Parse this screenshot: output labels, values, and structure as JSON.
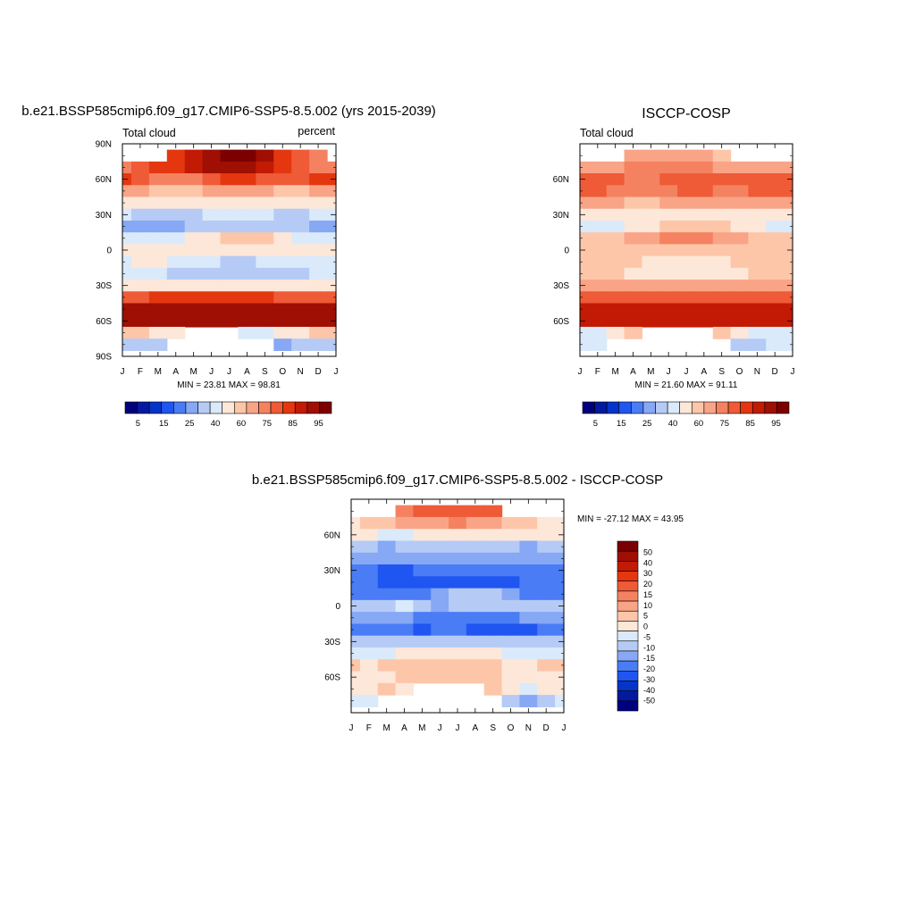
{
  "colors": {
    "abs_scale": [
      "#00007f",
      "#0219a0",
      "#0434c8",
      "#1f55f0",
      "#4a7cf6",
      "#86a8f5",
      "#b5cbf6",
      "#daeafa",
      "#fde7d8",
      "#fdc6a9",
      "#f9a487",
      "#f48261",
      "#ef5a37",
      "#e43710",
      "#c21a05",
      "#9f0f03",
      "#7c0000"
    ],
    "diff_scale": [
      "#00007f",
      "#0219a0",
      "#0434c8",
      "#1f55f0",
      "#4a7cf6",
      "#86a8f5",
      "#b5cbf6",
      "#daeafa",
      "#fde7d8",
      "#fdc6a9",
      "#f9a487",
      "#f48261",
      "#ef5a37",
      "#e43710",
      "#c21a05",
      "#9f0f03",
      "#7c0000"
    ]
  },
  "chart_data": [
    {
      "type": "heatmap",
      "title": "b.e21.BSSP585cmip6.f09_g17.CMIP6-SSP5-8.5.002 (yrs 2015-2039)",
      "left_label": "Total cloud",
      "right_label": "percent",
      "x": [
        "J",
        "F",
        "M",
        "A",
        "M",
        "J",
        "J",
        "A",
        "S",
        "O",
        "N",
        "D",
        "J"
      ],
      "y_ticks": [
        "90N",
        "60N",
        "30N",
        "0",
        "30S",
        "60S",
        "90S"
      ],
      "stats": "MIN =  23.81 MAX =  98.81",
      "colorbar_labels": [
        "5",
        "15",
        "25",
        "40",
        "60",
        "75",
        "85",
        "95"
      ],
      "colorbar_levels": [
        5,
        10,
        15,
        20,
        25,
        30,
        40,
        50,
        60,
        65,
        70,
        75,
        80,
        85,
        90,
        95
      ],
      "bands": [
        {
          "lat": 80,
          "values": [
            65,
            75,
            80,
            82,
            88,
            94,
            97,
            96,
            90,
            84,
            76,
            70,
            65
          ]
        },
        {
          "lat": 70,
          "values": [
            72,
            78,
            82,
            84,
            86,
            90,
            92,
            90,
            86,
            82,
            78,
            74,
            72
          ]
        },
        {
          "lat": 60,
          "values": [
            82,
            78,
            72,
            72,
            74,
            78,
            80,
            80,
            78,
            76,
            78,
            82,
            82
          ]
        },
        {
          "lat": 50,
          "values": [
            68,
            66,
            62,
            62,
            64,
            66,
            68,
            68,
            66,
            64,
            64,
            66,
            68
          ]
        },
        {
          "lat": 40,
          "values": [
            55,
            54,
            52,
            50,
            50,
            52,
            55,
            55,
            54,
            54,
            54,
            55,
            55
          ]
        },
        {
          "lat": 30,
          "values": [
            40,
            38,
            36,
            34,
            36,
            40,
            42,
            42,
            40,
            38,
            38,
            40,
            40
          ]
        },
        {
          "lat": 20,
          "values": [
            28,
            26,
            25,
            26,
            30,
            35,
            38,
            38,
            36,
            32,
            30,
            28,
            28
          ]
        },
        {
          "lat": 10,
          "values": [
            42,
            42,
            44,
            48,
            52,
            58,
            62,
            62,
            60,
            55,
            48,
            44,
            42
          ]
        },
        {
          "lat": 0,
          "values": [
            55,
            56,
            58,
            58,
            56,
            54,
            54,
            54,
            56,
            58,
            58,
            56,
            55
          ]
        },
        {
          "lat": -10,
          "values": [
            48,
            50,
            50,
            46,
            42,
            40,
            38,
            38,
            40,
            42,
            46,
            48,
            48
          ]
        },
        {
          "lat": -20,
          "values": [
            40,
            42,
            42,
            38,
            34,
            32,
            30,
            30,
            32,
            34,
            38,
            40,
            40
          ]
        },
        {
          "lat": -30,
          "values": [
            58,
            58,
            58,
            58,
            56,
            56,
            56,
            56,
            56,
            58,
            58,
            58,
            58
          ]
        },
        {
          "lat": -40,
          "values": [
            78,
            78,
            80,
            80,
            80,
            80,
            80,
            80,
            80,
            78,
            78,
            78,
            78
          ]
        },
        {
          "lat": -50,
          "values": [
            92,
            92,
            92,
            92,
            92,
            92,
            92,
            92,
            92,
            92,
            92,
            92,
            92
          ]
        },
        {
          "lat": -60,
          "values": [
            90,
            90,
            90,
            90,
            90,
            90,
            90,
            90,
            90,
            90,
            90,
            90,
            90
          ]
        },
        {
          "lat": -70,
          "values": [
            62,
            60,
            55,
            50,
            45,
            40,
            40,
            40,
            45,
            50,
            55,
            60,
            62
          ]
        },
        {
          "lat": -80,
          "values": [
            35,
            32,
            30,
            28,
            26,
            25,
            25,
            25,
            26,
            28,
            30,
            32,
            35
          ]
        }
      ],
      "missing": [
        {
          "lat": 80,
          "months": [
            0,
            1,
            2,
            12
          ]
        },
        {
          "lat": -70,
          "months": [
            4,
            5,
            6
          ]
        },
        {
          "lat": -80,
          "months": [
            3,
            4,
            5,
            6,
            7,
            8
          ]
        }
      ]
    },
    {
      "type": "heatmap",
      "title": "ISCCP-COSP",
      "left_label": "Total cloud",
      "right_label": "",
      "x": [
        "J",
        "F",
        "M",
        "A",
        "M",
        "J",
        "J",
        "A",
        "S",
        "O",
        "N",
        "D",
        "J"
      ],
      "y_ticks": [
        "",
        "60N",
        "30N",
        "0",
        "30S",
        "60S",
        ""
      ],
      "stats": "MIN =  21.60 MAX =  91.11",
      "colorbar_labels": [
        "5",
        "15",
        "25",
        "40",
        "60",
        "75",
        "85",
        "95"
      ],
      "colorbar_levels": [
        5,
        10,
        15,
        20,
        25,
        30,
        40,
        50,
        60,
        65,
        70,
        75,
        80,
        85,
        90,
        95
      ],
      "bands": [
        {
          "lat": 80,
          "values": [
            62,
            62,
            64,
            66,
            68,
            68,
            68,
            66,
            64,
            62,
            62,
            62,
            62
          ]
        },
        {
          "lat": 70,
          "values": [
            66,
            66,
            68,
            70,
            72,
            72,
            72,
            70,
            68,
            66,
            66,
            66,
            66
          ]
        },
        {
          "lat": 60,
          "values": [
            78,
            78,
            76,
            74,
            74,
            76,
            78,
            78,
            76,
            76,
            78,
            78,
            78
          ]
        },
        {
          "lat": 50,
          "values": [
            76,
            76,
            74,
            72,
            72,
            74,
            76,
            76,
            74,
            74,
            76,
            76,
            76
          ]
        },
        {
          "lat": 40,
          "values": [
            68,
            68,
            66,
            64,
            64,
            66,
            68,
            68,
            66,
            66,
            68,
            68,
            68
          ]
        },
        {
          "lat": 30,
          "values": [
            58,
            58,
            58,
            56,
            56,
            58,
            58,
            58,
            58,
            58,
            58,
            58,
            58
          ]
        },
        {
          "lat": 20,
          "values": [
            45,
            46,
            48,
            52,
            58,
            62,
            64,
            64,
            62,
            56,
            50,
            46,
            45
          ]
        },
        {
          "lat": 10,
          "values": [
            62,
            62,
            64,
            66,
            68,
            70,
            70,
            70,
            68,
            66,
            64,
            62,
            62
          ]
        },
        {
          "lat": 0,
          "values": [
            64,
            64,
            64,
            64,
            64,
            64,
            64,
            64,
            64,
            64,
            64,
            64,
            64
          ]
        },
        {
          "lat": -10,
          "values": [
            62,
            62,
            62,
            60,
            58,
            58,
            58,
            58,
            58,
            60,
            62,
            62,
            62
          ]
        },
        {
          "lat": -20,
          "values": [
            60,
            60,
            60,
            58,
            56,
            50,
            50,
            52,
            56,
            58,
            60,
            60,
            60
          ]
        },
        {
          "lat": -30,
          "values": [
            65,
            65,
            65,
            65,
            65,
            65,
            65,
            65,
            65,
            65,
            65,
            65,
            65
          ]
        },
        {
          "lat": -40,
          "values": [
            75,
            75,
            75,
            75,
            75,
            75,
            75,
            75,
            75,
            75,
            75,
            75,
            75
          ]
        },
        {
          "lat": -50,
          "values": [
            86,
            86,
            86,
            86,
            86,
            86,
            86,
            86,
            86,
            86,
            86,
            86,
            86
          ]
        },
        {
          "lat": -60,
          "values": [
            86,
            86,
            86,
            86,
            86,
            86,
            86,
            86,
            86,
            86,
            86,
            86,
            86
          ]
        },
        {
          "lat": -70,
          "values": [
            40,
            40,
            55,
            60,
            60,
            60,
            60,
            60,
            60,
            50,
            40,
            40,
            40
          ]
        },
        {
          "lat": -80,
          "values": [
            45,
            40,
            35,
            30,
            30,
            30,
            30,
            30,
            30,
            30,
            35,
            40,
            45
          ]
        }
      ],
      "missing": [
        {
          "lat": 80,
          "months": [
            0,
            1,
            2,
            9,
            10,
            11,
            12
          ]
        },
        {
          "lat": -70,
          "months": [
            4,
            5,
            6,
            7
          ]
        },
        {
          "lat": -80,
          "months": [
            2,
            3,
            4,
            5,
            6,
            7,
            8
          ]
        }
      ]
    },
    {
      "type": "heatmap",
      "title": "b.e21.BSSP585cmip6.f09_g17.CMIP6-SSP5-8.5.002 - ISCCP-COSP",
      "left_label": "",
      "right_label": "",
      "x": [
        "J",
        "F",
        "M",
        "A",
        "M",
        "J",
        "J",
        "A",
        "S",
        "O",
        "N",
        "D",
        "J"
      ],
      "y_ticks": [
        "",
        "60N",
        "30N",
        "0",
        "30S",
        "60S",
        ""
      ],
      "stats": "MIN = -27.12 MAX =  43.95",
      "colorbar_labels": [
        "50",
        "40",
        "30",
        "20",
        "15",
        "10",
        "5",
        "0",
        "-5",
        "-10",
        "-15",
        "-20",
        "-30",
        "-40",
        "-50"
      ],
      "colorbar_levels": [
        -50,
        -40,
        -30,
        -20,
        -15,
        -10,
        -5,
        0,
        5,
        10,
        15,
        20,
        30,
        40,
        50
      ],
      "bands": [
        {
          "lat": 80,
          "values": [
            0,
            5,
            10,
            15,
            20,
            25,
            28,
            25,
            20,
            12,
            5,
            0,
            0
          ]
        },
        {
          "lat": 70,
          "values": [
            2,
            5,
            8,
            10,
            12,
            14,
            15,
            14,
            10,
            8,
            5,
            2,
            2
          ]
        },
        {
          "lat": 60,
          "values": [
            4,
            0,
            -4,
            -2,
            0,
            2,
            2,
            2,
            2,
            0,
            0,
            4,
            4
          ]
        },
        {
          "lat": 50,
          "values": [
            -8,
            -10,
            -12,
            -10,
            -8,
            -8,
            -8,
            -8,
            -8,
            -10,
            -12,
            -10,
            -8
          ]
        },
        {
          "lat": 40,
          "values": [
            -14,
            -14,
            -14,
            -14,
            -12,
            -14,
            -13,
            -13,
            -12,
            -12,
            -14,
            -13,
            -14
          ]
        },
        {
          "lat": 30,
          "values": [
            -18,
            -20,
            -22,
            -22,
            -20,
            -18,
            -16,
            -16,
            -18,
            -20,
            -20,
            -18,
            -18
          ]
        },
        {
          "lat": 20,
          "values": [
            -16,
            -20,
            -22,
            -24,
            -25,
            -26,
            -24,
            -24,
            -24,
            -22,
            -20,
            -18,
            -16
          ]
        },
        {
          "lat": 10,
          "values": [
            -20,
            -20,
            -20,
            -18,
            -16,
            -12,
            -8,
            -8,
            -10,
            -12,
            -16,
            -18,
            -20
          ]
        },
        {
          "lat": 0,
          "values": [
            -8,
            -6,
            -6,
            -4,
            -8,
            -12,
            -10,
            -10,
            -8,
            -6,
            -6,
            -8,
            -8
          ]
        },
        {
          "lat": -10,
          "values": [
            -12,
            -12,
            -12,
            -14,
            -16,
            -18,
            -20,
            -20,
            -18,
            -16,
            -14,
            -12,
            -12
          ]
        },
        {
          "lat": -20,
          "values": [
            -20,
            -18,
            -18,
            -20,
            -22,
            -18,
            -20,
            -22,
            -24,
            -24,
            -22,
            -20,
            -20
          ]
        },
        {
          "lat": -30,
          "values": [
            -10,
            -8,
            -8,
            -10,
            -10,
            -10,
            -10,
            -10,
            -10,
            -10,
            -10,
            -10,
            -10
          ]
        },
        {
          "lat": -40,
          "values": [
            -4,
            -4,
            -2,
            2,
            4,
            4,
            4,
            4,
            2,
            -2,
            -4,
            -4,
            -4
          ]
        },
        {
          "lat": -50,
          "values": [
            6,
            4,
            6,
            8,
            8,
            8,
            8,
            8,
            6,
            4,
            4,
            6,
            6
          ]
        },
        {
          "lat": -60,
          "values": [
            4,
            2,
            4,
            6,
            6,
            6,
            6,
            6,
            6,
            4,
            2,
            4,
            4
          ]
        },
        {
          "lat": -70,
          "values": [
            2,
            4,
            8,
            4,
            0,
            0,
            0,
            0,
            8,
            2,
            -2,
            2,
            2
          ]
        },
        {
          "lat": -80,
          "values": [
            -2,
            -4,
            -8,
            -10,
            -8,
            -5,
            -5,
            -5,
            -5,
            -10,
            -12,
            -10,
            -2
          ]
        }
      ],
      "missing": [
        {
          "lat": 80,
          "months": [
            0,
            1,
            2,
            9,
            10,
            11,
            12
          ]
        },
        {
          "lat": -70,
          "months": [
            4,
            5,
            6,
            7
          ]
        },
        {
          "lat": -80,
          "months": [
            2,
            3,
            4,
            5,
            6,
            7,
            8
          ]
        }
      ]
    }
  ]
}
